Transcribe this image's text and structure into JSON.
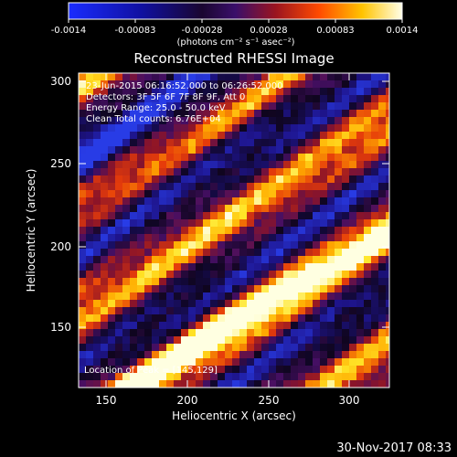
{
  "colorbar": {
    "ticks": [
      "-0.0014",
      "-0.00083",
      "-0.00028",
      "0.00028",
      "0.00083",
      "0.0014"
    ],
    "units": "(photons cm⁻² s⁻¹ asec⁻²)"
  },
  "plot": {
    "title": "Reconstructed RHESSI Image",
    "annotations": {
      "time_range": "23-Jun-2015 06:16:52.000 to 06:26:52.000",
      "detectors": "Detectors: 3F 5F 6F 7F 8F 9F, Att 0",
      "energy": "Energy Range: 25.0 - 50.0 keV",
      "clean": "Clean     Total counts: 6.76E+04",
      "peak": "Location of Peak = [145,129]"
    },
    "xlabel": "Heliocentric X (arcsec)",
    "ylabel": "Heliocentric Y (arcsec)",
    "xticks": [
      "150",
      "200",
      "250",
      "300"
    ],
    "yticks": [
      "150",
      "200",
      "250",
      "300"
    ],
    "xlim": [
      133,
      325
    ],
    "ylim": [
      115,
      310
    ]
  },
  "footer": {
    "date": "30-Nov-2017 08:33"
  }
}
